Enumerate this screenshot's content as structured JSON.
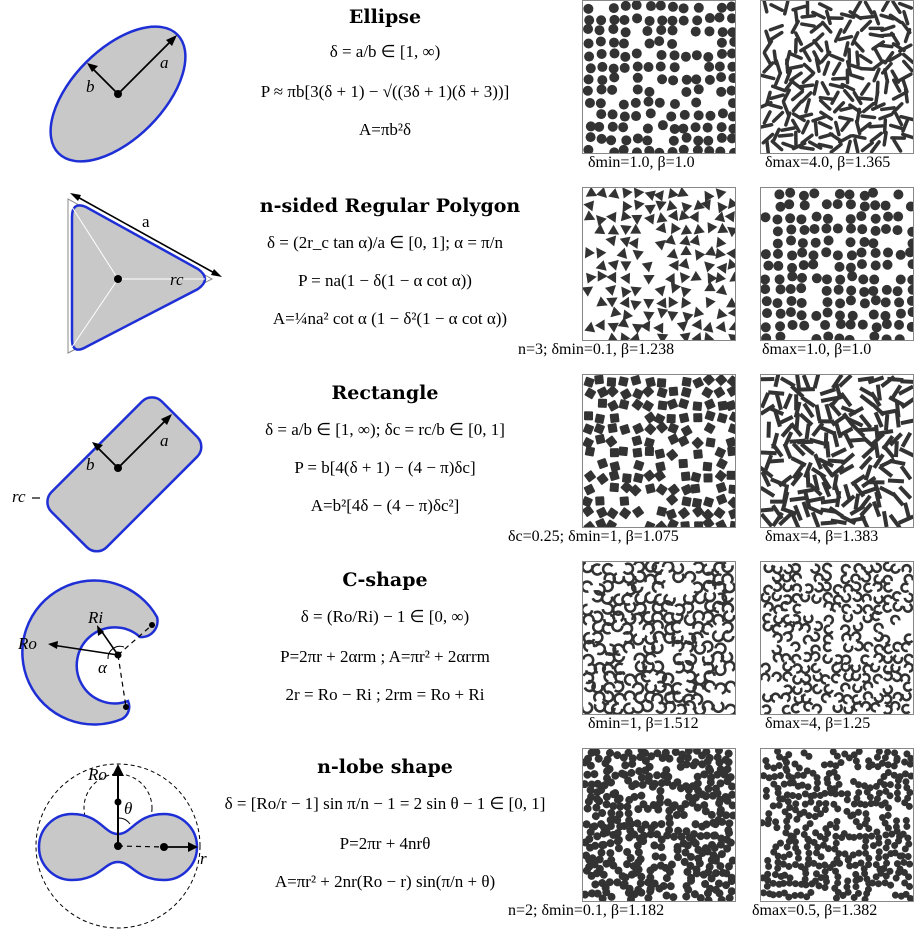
{
  "rows": [
    {
      "title": "Ellipse",
      "eq": [
        "δ = a/b ∈ [1, ∞)",
        "P ≈ πb[3(δ + 1) − √((3δ + 1)(δ + 3))]",
        "A=πb²δ"
      ],
      "cap_left": "δmin=1.0, β=1.0",
      "cap_right": "δmax=4.0, β=1.365"
    },
    {
      "title": "n-sided Regular Polygon",
      "eq": [
        "δ = (2r_c tan α)/a ∈ [0, 1]; α = π/n",
        "P = na(1 − δ(1 − α cot α))",
        "A=¼na² cot α (1 − δ²(1 − α cot α))"
      ],
      "cap_left": "n=3; δmin=0.1, β=1.238",
      "cap_right": "δmax=1.0, β=1.0"
    },
    {
      "title": "Rectangle",
      "eq": [
        "δ = a/b ∈ [1, ∞); δc = rc/b ∈ [0, 1]",
        "P = b[4(δ + 1) − (4 − π)δc]",
        "A=b²[4δ − (4 − π)δc²]"
      ],
      "cap_left": "δc=0.25; δmin=1, β=1.075",
      "cap_right": "δmax=4, β=1.383"
    },
    {
      "title": "C-shape",
      "eq": [
        "δ = (Ro/Ri) − 1 ∈ [0, ∞)",
        "P=2πr + 2αrm  ; A=πr² + 2αrrm",
        "2r = Ro − Ri ; 2rm = Ro + Ri"
      ],
      "cap_left": "δmin=1, β=1.512",
      "cap_right": "δmax=4, β=1.25"
    },
    {
      "title": "n-lobe shape",
      "eq": [
        "δ = [Ro/r − 1] sin π/n − 1 = 2 sin θ − 1 ∈ [0, 1]",
        "P=2πr + 4nrθ",
        "A=πr² + 2nr(Ro − r) sin(π/n + θ)"
      ],
      "cap_left": "n=2; δmin=0.1, β=1.182",
      "cap_right": "δmax=0.5, β=1.382"
    }
  ],
  "labels": {
    "a": "a",
    "b": "b",
    "rc": "rc",
    "Ro": "Ro",
    "Ri": "Ri",
    "alpha": "α",
    "theta": "θ",
    "r": "r"
  },
  "colors": {
    "fill": "#c8c8c8",
    "outline": "#1f2fd6",
    "particle": "#333333"
  }
}
